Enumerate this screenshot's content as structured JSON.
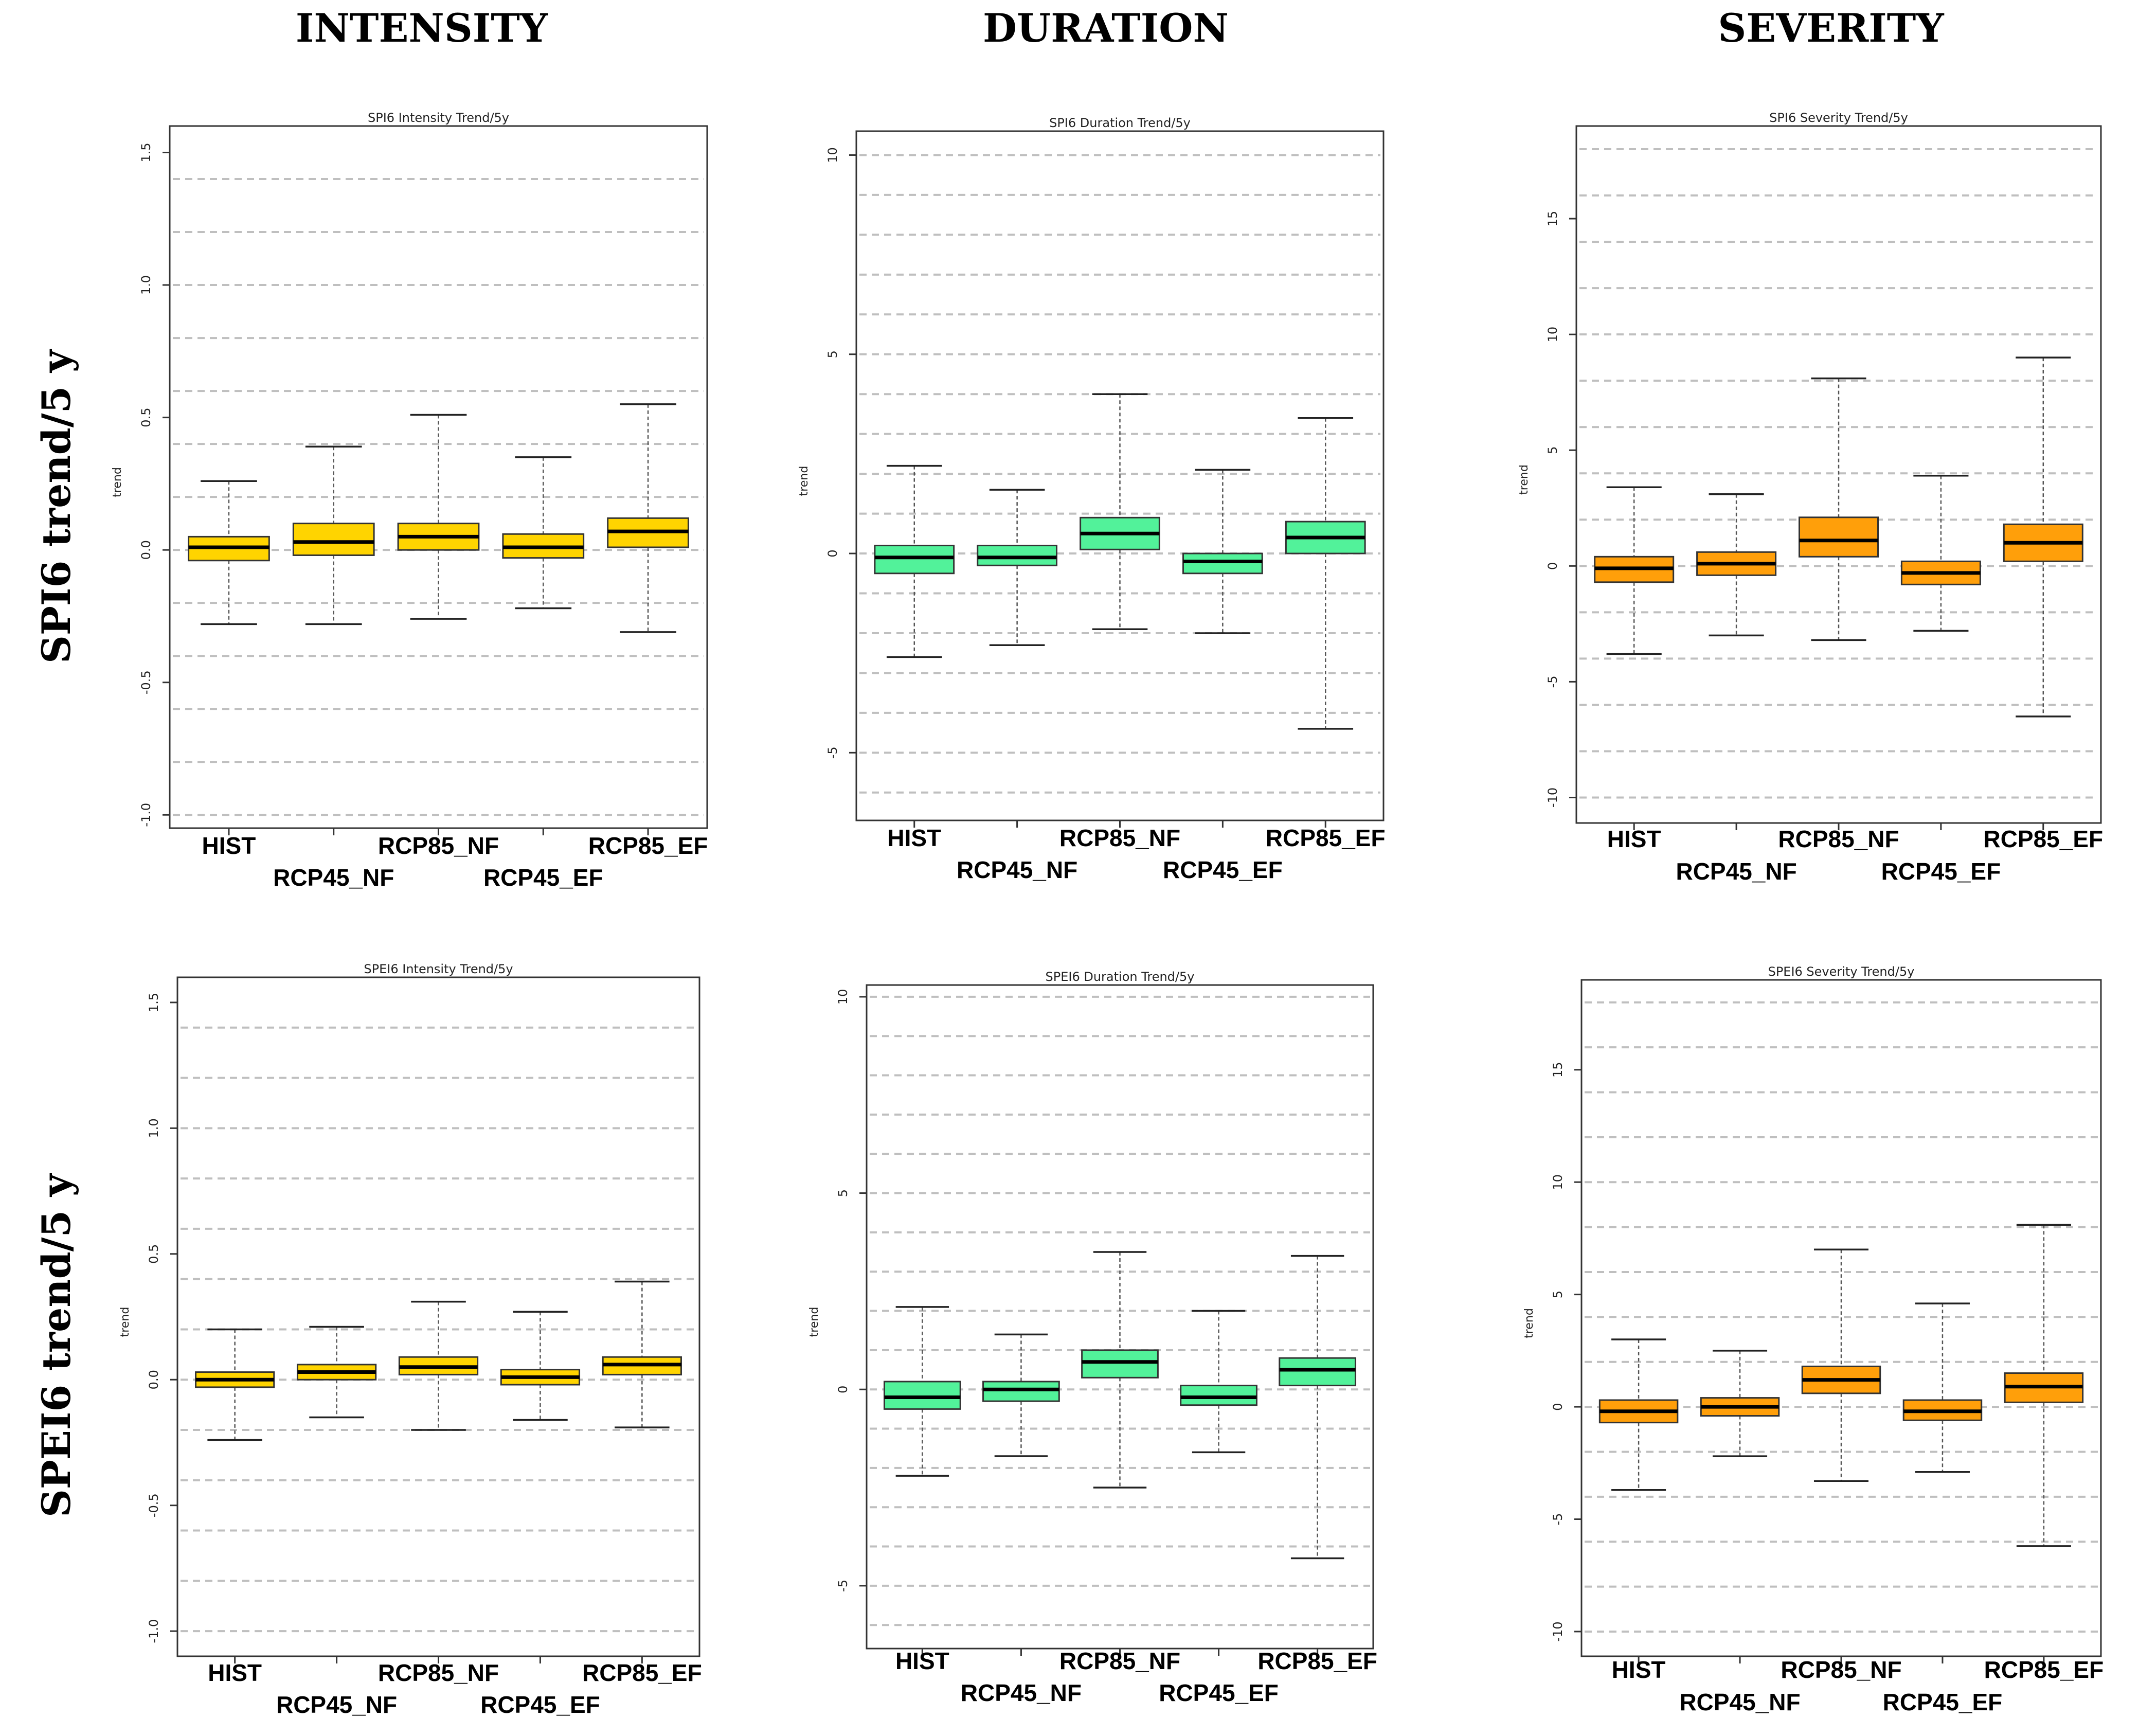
{
  "column_titles": [
    "INTENSITY",
    "DURATION",
    "SEVERITY"
  ],
  "row_titles": [
    "SPI6 trend/5 y",
    "SPEI6 trend/5 y"
  ],
  "colors": {
    "intensity": "#ffd400",
    "duration": "#52f29a",
    "severity": "#ff9f0a",
    "grid": "#bfbfbf",
    "frame": "#333333"
  },
  "chart_data": [
    {
      "type": "boxplot",
      "panel": "SPI6-intensity",
      "title": "SPI6 Intensity Trend/5y",
      "ylabel": "trend",
      "xlabel": "",
      "ylim": [
        -1.05,
        1.6
      ],
      "yticks": [
        -1.0,
        -0.5,
        0.0,
        0.5,
        1.0,
        1.5
      ],
      "grid_lines": [
        -1.0,
        -0.8,
        -0.6,
        -0.4,
        -0.2,
        0.0,
        0.2,
        0.4,
        0.6,
        0.8,
        1.0,
        1.2,
        1.4
      ],
      "fill": "intensity",
      "categories": [
        "HIST",
        "RCP45_NF",
        "RCP85_NF",
        "RCP45_EF",
        "RCP85_EF"
      ],
      "boxes": [
        {
          "min": -0.28,
          "q1": -0.04,
          "median": 0.01,
          "q3": 0.05,
          "max": 0.26
        },
        {
          "min": -0.28,
          "q1": -0.02,
          "median": 0.03,
          "q3": 0.1,
          "max": 0.39
        },
        {
          "min": -0.26,
          "q1": 0.0,
          "median": 0.05,
          "q3": 0.1,
          "max": 0.51
        },
        {
          "min": -0.22,
          "q1": -0.03,
          "median": 0.01,
          "q3": 0.06,
          "max": 0.35
        },
        {
          "min": -0.31,
          "q1": 0.01,
          "median": 0.07,
          "q3": 0.12,
          "max": 0.55
        }
      ]
    },
    {
      "type": "boxplot",
      "panel": "SPI6-duration",
      "title": "SPI6 Duration Trend/5y",
      "ylabel": "trend",
      "xlabel": "",
      "ylim": [
        -6.7,
        10.6
      ],
      "yticks": [
        -5,
        0,
        5,
        10
      ],
      "grid_lines": [
        -6,
        -5,
        -4,
        -3,
        -2,
        -1,
        0,
        1,
        2,
        3,
        4,
        5,
        6,
        7,
        8,
        9,
        10
      ],
      "fill": "duration",
      "categories": [
        "HIST",
        "RCP45_NF",
        "RCP85_NF",
        "RCP45_EF",
        "RCP85_EF"
      ],
      "boxes": [
        {
          "min": -2.6,
          "q1": -0.5,
          "median": -0.1,
          "q3": 0.2,
          "max": 2.2
        },
        {
          "min": -2.3,
          "q1": -0.3,
          "median": -0.1,
          "q3": 0.2,
          "max": 1.6
        },
        {
          "min": -1.9,
          "q1": 0.1,
          "median": 0.5,
          "q3": 0.9,
          "max": 4.0
        },
        {
          "min": -2.0,
          "q1": -0.5,
          "median": -0.2,
          "q3": 0.0,
          "max": 2.1
        },
        {
          "min": -4.4,
          "q1": 0.0,
          "median": 0.4,
          "q3": 0.8,
          "max": 3.4
        }
      ]
    },
    {
      "type": "boxplot",
      "panel": "SPI6-severity",
      "title": "SPI6 Severity Trend/5y",
      "ylabel": "trend",
      "xlabel": "",
      "ylim": [
        -11.1,
        19.0
      ],
      "yticks": [
        -10,
        -5,
        0,
        5,
        10,
        15
      ],
      "grid_lines": [
        -10,
        -8,
        -6,
        -4,
        -2,
        0,
        2,
        4,
        6,
        8,
        10,
        12,
        14,
        16,
        18
      ],
      "fill": "severity",
      "categories": [
        "HIST",
        "RCP45_NF",
        "RCP85_NF",
        "RCP45_EF",
        "RCP85_EF"
      ],
      "boxes": [
        {
          "min": -3.8,
          "q1": -0.7,
          "median": -0.1,
          "q3": 0.4,
          "max": 3.4
        },
        {
          "min": -3.0,
          "q1": -0.4,
          "median": 0.1,
          "q3": 0.6,
          "max": 3.1
        },
        {
          "min": -3.2,
          "q1": 0.4,
          "median": 1.1,
          "q3": 2.1,
          "max": 8.1
        },
        {
          "min": -2.8,
          "q1": -0.8,
          "median": -0.3,
          "q3": 0.2,
          "max": 3.9
        },
        {
          "min": -6.5,
          "q1": 0.2,
          "median": 1.0,
          "q3": 1.8,
          "max": 9.0
        }
      ]
    },
    {
      "type": "boxplot",
      "panel": "SPEI6-intensity",
      "title": "SPEI6 Intensity Trend/5y",
      "ylabel": "trend",
      "xlabel": "",
      "ylim": [
        -1.1,
        1.6
      ],
      "yticks": [
        -1.0,
        -0.5,
        0.0,
        0.5,
        1.0,
        1.5
      ],
      "grid_lines": [
        -1.0,
        -0.8,
        -0.6,
        -0.4,
        -0.2,
        0.0,
        0.2,
        0.4,
        0.6,
        0.8,
        1.0,
        1.2,
        1.4
      ],
      "fill": "intensity",
      "categories": [
        "HIST",
        "RCP45_NF",
        "RCP85_NF",
        "RCP45_EF",
        "RCP85_EF"
      ],
      "boxes": [
        {
          "min": -0.24,
          "q1": -0.03,
          "median": 0.0,
          "q3": 0.03,
          "max": 0.2
        },
        {
          "min": -0.15,
          "q1": 0.0,
          "median": 0.03,
          "q3": 0.06,
          "max": 0.21
        },
        {
          "min": -0.2,
          "q1": 0.02,
          "median": 0.05,
          "q3": 0.09,
          "max": 0.31
        },
        {
          "min": -0.16,
          "q1": -0.02,
          "median": 0.01,
          "q3": 0.04,
          "max": 0.27
        },
        {
          "min": -0.19,
          "q1": 0.02,
          "median": 0.06,
          "q3": 0.09,
          "max": 0.39
        }
      ]
    },
    {
      "type": "boxplot",
      "panel": "SPEI6-duration",
      "title": "SPEI6 Duration Trend/5y",
      "ylabel": "trend",
      "xlabel": "",
      "ylim": [
        -6.6,
        10.3
      ],
      "yticks": [
        -5,
        0,
        5,
        10
      ],
      "grid_lines": [
        -6,
        -5,
        -4,
        -3,
        -2,
        -1,
        0,
        1,
        2,
        3,
        4,
        5,
        6,
        7,
        8,
        9,
        10
      ],
      "fill": "duration",
      "categories": [
        "HIST",
        "RCP45_NF",
        "RCP85_NF",
        "RCP45_EF",
        "RCP85_EF"
      ],
      "boxes": [
        {
          "min": -2.2,
          "q1": -0.5,
          "median": -0.2,
          "q3": 0.2,
          "max": 2.1
        },
        {
          "min": -1.7,
          "q1": -0.3,
          "median": 0.0,
          "q3": 0.2,
          "max": 1.4
        },
        {
          "min": -2.5,
          "q1": 0.3,
          "median": 0.7,
          "q3": 1.0,
          "max": 3.5
        },
        {
          "min": -1.6,
          "q1": -0.4,
          "median": -0.2,
          "q3": 0.1,
          "max": 2.0
        },
        {
          "min": -4.3,
          "q1": 0.1,
          "median": 0.5,
          "q3": 0.8,
          "max": 3.4
        }
      ]
    },
    {
      "type": "boxplot",
      "panel": "SPEI6-severity",
      "title": "SPEI6 Severity Trend/5y",
      "ylabel": "trend",
      "xlabel": "",
      "ylim": [
        -11.1,
        19.0
      ],
      "yticks": [
        -10,
        -5,
        0,
        5,
        10,
        15
      ],
      "grid_lines": [
        -10,
        -8,
        -6,
        -4,
        -2,
        0,
        2,
        4,
        6,
        8,
        10,
        12,
        14,
        16,
        18
      ],
      "fill": "severity",
      "categories": [
        "HIST",
        "RCP45_NF",
        "RCP85_NF",
        "RCP45_EF",
        "RCP85_EF"
      ],
      "boxes": [
        {
          "min": -3.7,
          "q1": -0.7,
          "median": -0.2,
          "q3": 0.3,
          "max": 3.0
        },
        {
          "min": -2.2,
          "q1": -0.4,
          "median": 0.0,
          "q3": 0.4,
          "max": 2.5
        },
        {
          "min": -3.3,
          "q1": 0.6,
          "median": 1.2,
          "q3": 1.8,
          "max": 7.0
        },
        {
          "min": -2.9,
          "q1": -0.6,
          "median": -0.2,
          "q3": 0.3,
          "max": 4.6
        },
        {
          "min": -6.2,
          "q1": 0.2,
          "median": 0.9,
          "q3": 1.5,
          "max": 8.1
        }
      ]
    }
  ]
}
